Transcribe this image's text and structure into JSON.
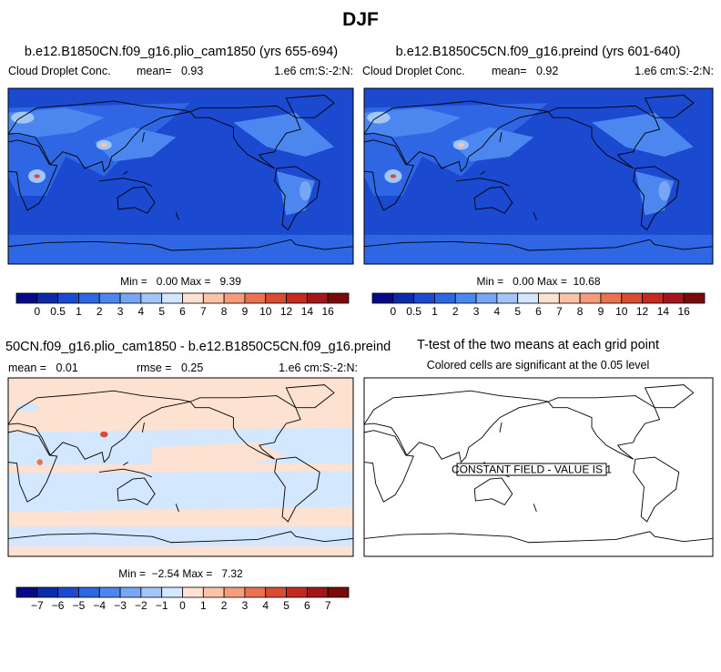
{
  "title": "DJF",
  "colorbar_colors": [
    "#06098a",
    "#0b2ba8",
    "#1b49cf",
    "#2f66e4",
    "#4c86ef",
    "#77a6f4",
    "#a3c6f9",
    "#d3e7ff",
    "#fde2d2",
    "#fbc3a8",
    "#f59c7c",
    "#ea7252",
    "#da4b34",
    "#c32b20",
    "#a2151b",
    "#7a0909"
  ],
  "panels": [
    {
      "title": "b.e12.B1850CN.f09_g16.plio_cam1850 (yrs 655-694)",
      "left": "Cloud Droplet Conc.",
      "center": "mean=   0.93",
      "right": "1.e6 cm:S:-2:N:",
      "stats": "Min =   0.00 Max =   9.39",
      "colorbar_labels": [
        "0",
        "0.5",
        "1",
        "2",
        "3",
        "4",
        "5",
        "6",
        "7",
        "8",
        "9",
        "10",
        "12",
        "14",
        "16"
      ]
    },
    {
      "title": "b.e12.B1850C5CN.f09_g16.preind (yrs 601-640)",
      "left": "Cloud Droplet Conc.",
      "center": "mean=   0.92",
      "right": "1.e6 cm:S:-2:N:",
      "stats": "Min =   0.00 Max =  10.68",
      "colorbar_labels": [
        "0",
        "0.5",
        "1",
        "2",
        "3",
        "4",
        "5",
        "6",
        "7",
        "8",
        "9",
        "10",
        "12",
        "14",
        "16"
      ]
    },
    {
      "title": "50CN.f09_g16.plio_cam1850 - b.e12.B1850C5CN.f09_g16.preind",
      "left": "mean =   0.01",
      "center": "rmse =   0.25",
      "right": "1.e6 cm:S:-2:N:",
      "stats": "Min =  −2.54 Max =   7.32",
      "colorbar_labels": [
        "−7",
        "−6",
        "−5",
        "−4",
        "−3",
        "−2",
        "−1",
        "0",
        "1",
        "2",
        "3",
        "4",
        "5",
        "6",
        "7"
      ]
    },
    {
      "title": "T-test of the two means at each grid point",
      "subtitle": "Colored cells are significant at the 0.05 level",
      "note": "CONSTANT FIELD - VALUE IS 1"
    }
  ]
}
